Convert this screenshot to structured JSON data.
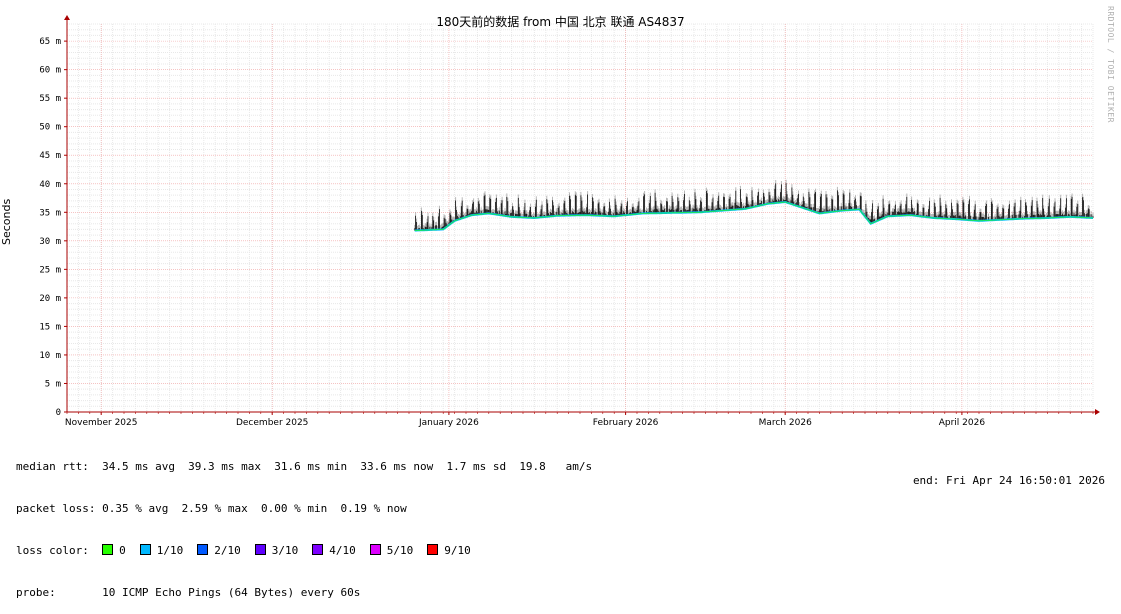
{
  "chart_data": {
    "type": "line",
    "title": "180天前的数据 from  中国 北京 联通 AS4837",
    "ylabel": "Seconds",
    "ylim": [
      0,
      68
    ],
    "yticks": [
      {
        "v": 0,
        "label": "0"
      },
      {
        "v": 5,
        "label": "5 m"
      },
      {
        "v": 10,
        "label": "10 m"
      },
      {
        "v": 15,
        "label": "15 m"
      },
      {
        "v": 20,
        "label": "20 m"
      },
      {
        "v": 25,
        "label": "25 m"
      },
      {
        "v": 30,
        "label": "30 m"
      },
      {
        "v": 35,
        "label": "35 m"
      },
      {
        "v": 40,
        "label": "40 m"
      },
      {
        "v": 45,
        "label": "45 m"
      },
      {
        "v": 50,
        "label": "50 m"
      },
      {
        "v": 55,
        "label": "55 m"
      },
      {
        "v": 60,
        "label": "60 m"
      },
      {
        "v": 65,
        "label": "65 m"
      }
    ],
    "xlim": [
      "2025-10-26",
      "2026-04-24"
    ],
    "xticks": [
      {
        "date": "2025-11-01",
        "label": "November 2025"
      },
      {
        "date": "2025-12-01",
        "label": "December 2025"
      },
      {
        "date": "2026-01-01",
        "label": "January 2026"
      },
      {
        "date": "2026-02-01",
        "label": "February 2026"
      },
      {
        "date": "2026-03-01",
        "label": "March 2026"
      },
      {
        "date": "2026-04-01",
        "label": "April 2026"
      }
    ],
    "series": [
      {
        "x": [
          "2025-12-26",
          "2025-12-31",
          "2026-01-02",
          "2026-01-05",
          "2026-01-08",
          "2026-01-12",
          "2026-01-16",
          "2026-01-20",
          "2026-01-25",
          "2026-01-30",
          "2026-02-04",
          "2026-02-09",
          "2026-02-14",
          "2026-02-18",
          "2026-02-22",
          "2026-02-26",
          "2026-03-01",
          "2026-03-04",
          "2026-03-07",
          "2026-03-11",
          "2026-03-14",
          "2026-03-16",
          "2026-03-19",
          "2026-03-23",
          "2026-03-27",
          "2026-03-31",
          "2026-04-04",
          "2026-04-08",
          "2026-04-12",
          "2026-04-16",
          "2026-04-20",
          "2026-04-24"
        ],
        "values": [
          31.8,
          32.0,
          33.5,
          34.5,
          34.8,
          34.2,
          34.0,
          34.4,
          34.5,
          34.3,
          34.8,
          34.9,
          35.0,
          35.3,
          35.6,
          36.5,
          36.8,
          35.8,
          34.8,
          35.3,
          35.5,
          33.0,
          34.3,
          34.5,
          34.0,
          33.8,
          33.5,
          33.7,
          33.9,
          34.0,
          34.2,
          34.0
        ]
      }
    ],
    "loss_colors": [
      {
        "label": "0",
        "color": "#26ff00"
      },
      {
        "label": "1/10",
        "color": "#00b8ff"
      },
      {
        "label": "2/10",
        "color": "#0059ff"
      },
      {
        "label": "3/10",
        "color": "#5e00ff"
      },
      {
        "label": "4/10",
        "color": "#7e00ff"
      },
      {
        "label": "5/10",
        "color": "#dd00ff"
      },
      {
        "label": "9/10",
        "color": "#ff0000"
      }
    ],
    "grid": true
  },
  "watermark": "RRDTOOL / TOBI OETIKER",
  "stats": {
    "median_rtt": "median rtt:  34.5 ms avg  39.3 ms max  31.6 ms min  33.6 ms now  1.7 ms sd  19.8   am/s",
    "packet_loss": "packet loss: 0.35 % avg  2.59 % max  0.00 % min  0.19 % now",
    "loss_color_label": "loss color:",
    "probe": "probe:       10 ICMP Echo Pings (64 Bytes) every 60s",
    "end": "end: Fri Apr 24 16:50:01 2026"
  }
}
